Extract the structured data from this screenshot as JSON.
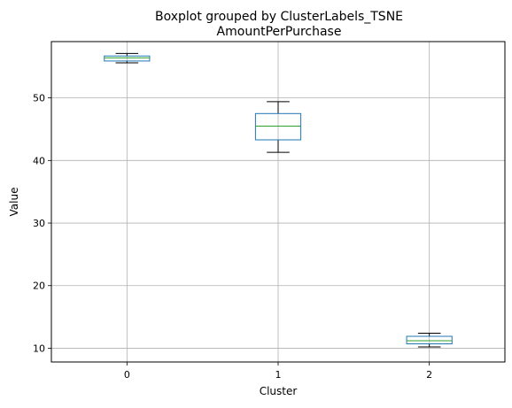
{
  "chart_data": {
    "type": "boxplot",
    "suptitle": "Boxplot grouped by ClusterLabels_TSNE",
    "title": "AmountPerPurchase",
    "xlabel": "Cluster",
    "ylabel": "Value",
    "categories": [
      "0",
      "1",
      "2"
    ],
    "ylim": [
      7.8,
      59.0
    ],
    "yticks": [
      10,
      20,
      30,
      40,
      50
    ],
    "grid": true,
    "boxes": [
      {
        "category": "0",
        "whisker_low": 55.6,
        "q1": 55.9,
        "median": 56.4,
        "q3": 56.7,
        "whisker_high": 57.1
      },
      {
        "category": "1",
        "whisker_low": 41.3,
        "q1": 43.3,
        "median": 45.5,
        "q3": 47.5,
        "whisker_high": 49.4
      },
      {
        "category": "2",
        "whisker_low": 10.2,
        "q1": 10.7,
        "median": 11.2,
        "q3": 11.9,
        "whisker_high": 12.4
      }
    ],
    "colors": {
      "box": "#1f77b4",
      "median": "#2ca02c",
      "whisker": "#000000",
      "grid": "#b0b0b0"
    }
  }
}
